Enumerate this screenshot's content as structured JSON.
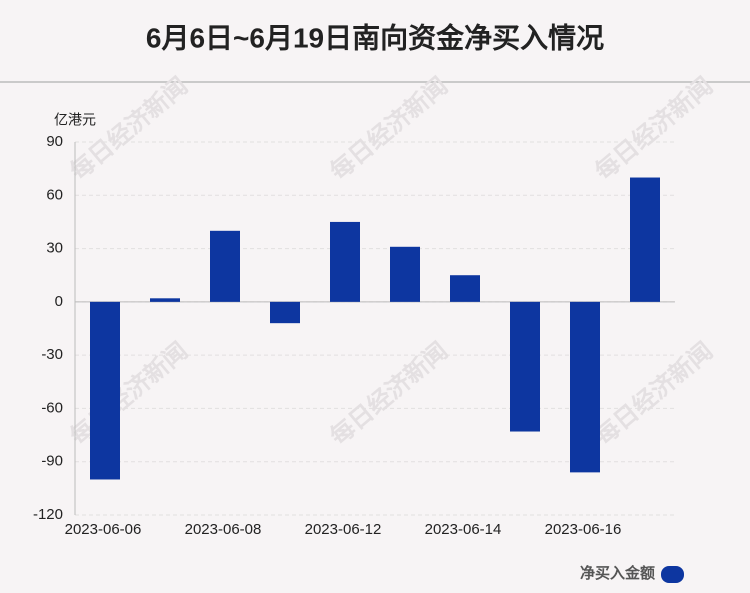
{
  "chart_data": {
    "type": "bar",
    "title": "6月6日~6月19日南向资金净买入情况",
    "y_unit": "亿港元",
    "watermark": "每日经济新闻",
    "categories": [
      "2023-06-06",
      null,
      "2023-06-08",
      null,
      "2023-06-12",
      null,
      "2023-06-14",
      null,
      "2023-06-16",
      null
    ],
    "series": [
      {
        "name": "净买入金额",
        "color": "#0d36a0",
        "values": [
          -100,
          2,
          40,
          -12,
          45,
          31,
          15,
          -73,
          -96,
          70
        ]
      }
    ],
    "ylim": [
      -120,
      90
    ],
    "yticks": [
      -120,
      -90,
      -60,
      -30,
      0,
      30,
      60,
      90
    ],
    "grid": true,
    "legend": "bottom-right"
  }
}
